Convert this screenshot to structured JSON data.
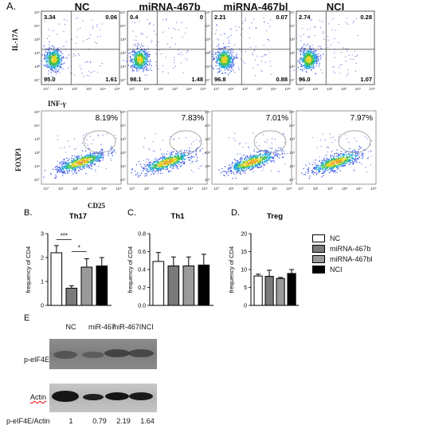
{
  "panel_a": {
    "letter": "A.",
    "condition_titles": [
      "NC",
      "miRNA-467b",
      "miRNA-467bl",
      "NCI"
    ],
    "flow_row1": {
      "y_axis_label": "IL-17A",
      "x_axis_label": "INF-γ",
      "quadrants": [
        {
          "ul": "3.34",
          "ur": "0.06",
          "ll": "95.0",
          "lr": "1.61"
        },
        {
          "ul": "0.4",
          "ur": "0",
          "ll": "98.1",
          "lr": "1.48"
        },
        {
          "ul": "2.21",
          "ur": "0.07",
          "ll": "96.8",
          "lr": "0.88"
        },
        {
          "ul": "2.74",
          "ur": "0.28",
          "ll": "96.0",
          "lr": "1.07"
        }
      ]
    },
    "flow_row2": {
      "y_axis_label": "FOXP3",
      "x_axis_label": "CD25",
      "gate_percents": [
        "8.19%",
        "7.83%",
        "7.01%",
        "7.97%"
      ]
    },
    "flow_tick_labels": [
      "10°",
      "10¹",
      "10²",
      "10³",
      "10⁴",
      "10⁵"
    ]
  },
  "chart_data": [
    {
      "type": "bar",
      "letter": "B.",
      "title": "Th17",
      "ylabel": "frequency of CD4",
      "categories": [
        "NC",
        "miRNA-467b",
        "miRNA-467bl",
        "NCI"
      ],
      "values": [
        2.2,
        0.72,
        1.6,
        1.65
      ],
      "errors": [
        0.3,
        0.1,
        0.35,
        0.35
      ],
      "ylim": [
        0,
        3
      ],
      "yticks": [
        "0",
        "1",
        "2",
        "3"
      ],
      "significance": [
        {
          "from": "NC",
          "to": "miRNA-467b",
          "label": "***"
        },
        {
          "from": "miRNA-467b",
          "to": "miRNA-467bl",
          "label": "*"
        }
      ]
    },
    {
      "type": "bar",
      "letter": "C.",
      "title": "Th1",
      "ylabel": "frequency of CD4",
      "categories": [
        "NC",
        "miRNA-467b",
        "miRNA-467bl",
        "NCI"
      ],
      "values": [
        0.49,
        0.44,
        0.44,
        0.45
      ],
      "errors": [
        0.1,
        0.1,
        0.1,
        0.12
      ],
      "ylim": [
        0,
        0.8
      ],
      "yticks": [
        "0.0",
        "0.2",
        "0.4",
        "0.6",
        "0.8"
      ]
    },
    {
      "type": "bar",
      "letter": "D.",
      "title": "Treg",
      "ylabel": "frequency of CD4",
      "categories": [
        "NC",
        "miRNA-467b",
        "miRNA-467bl",
        "NCI"
      ],
      "values": [
        8.2,
        8.1,
        7.5,
        8.9
      ],
      "errors": [
        0.5,
        1.7,
        0.3,
        1.1
      ],
      "ylim": [
        0,
        20
      ],
      "yticks": [
        "0",
        "5",
        "10",
        "15",
        "20"
      ]
    }
  ],
  "legend": [
    {
      "label": "NC",
      "color": "#ffffff"
    },
    {
      "label": "miRNA-467b",
      "color": "#7a7a7a"
    },
    {
      "label": "miRNA-467bl",
      "color": "#9a9a9a"
    },
    {
      "label": "NCI",
      "color": "#000000"
    }
  ],
  "bar_colors": [
    "#ffffff",
    "#7a7a7a",
    "#9a9a9a",
    "#000000"
  ],
  "panel_e": {
    "letter": "E",
    "lane_labels": [
      "NC",
      "miR-467",
      "miR-467I",
      "NCI"
    ],
    "blot1_label": "p-eIF4E",
    "blot2_label": "Actin",
    "ratio_label": "p-eIF4E/Actin",
    "ratios": [
      "1",
      "0.79",
      "2.19",
      "1.64"
    ]
  }
}
